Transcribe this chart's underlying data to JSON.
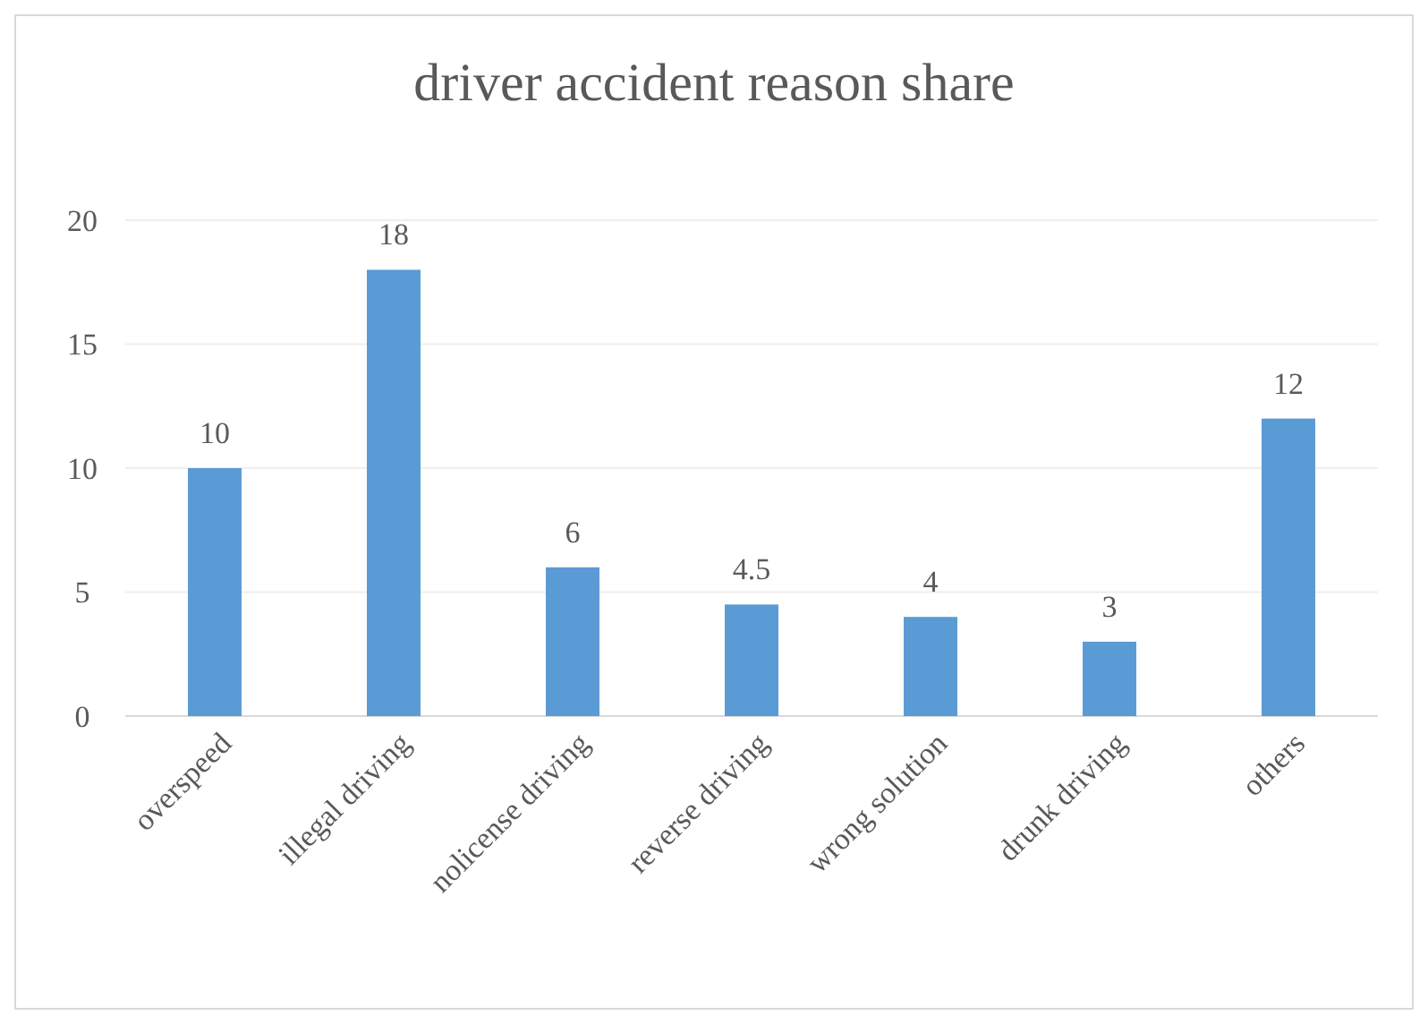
{
  "chart_data": {
    "type": "bar",
    "title": "driver accident reason share",
    "categories": [
      "overspeed",
      "illegal driving",
      "nolicense driving",
      "reverse driving",
      "wrong solution",
      "drunk driving",
      "others"
    ],
    "values": [
      10,
      18,
      6,
      4.5,
      4,
      3,
      12
    ],
    "color": "#5b9bd5",
    "ylim": [
      0,
      20
    ],
    "yticks": [
      0,
      5,
      10,
      15,
      20
    ],
    "grid": "y",
    "data_labels": true
  }
}
